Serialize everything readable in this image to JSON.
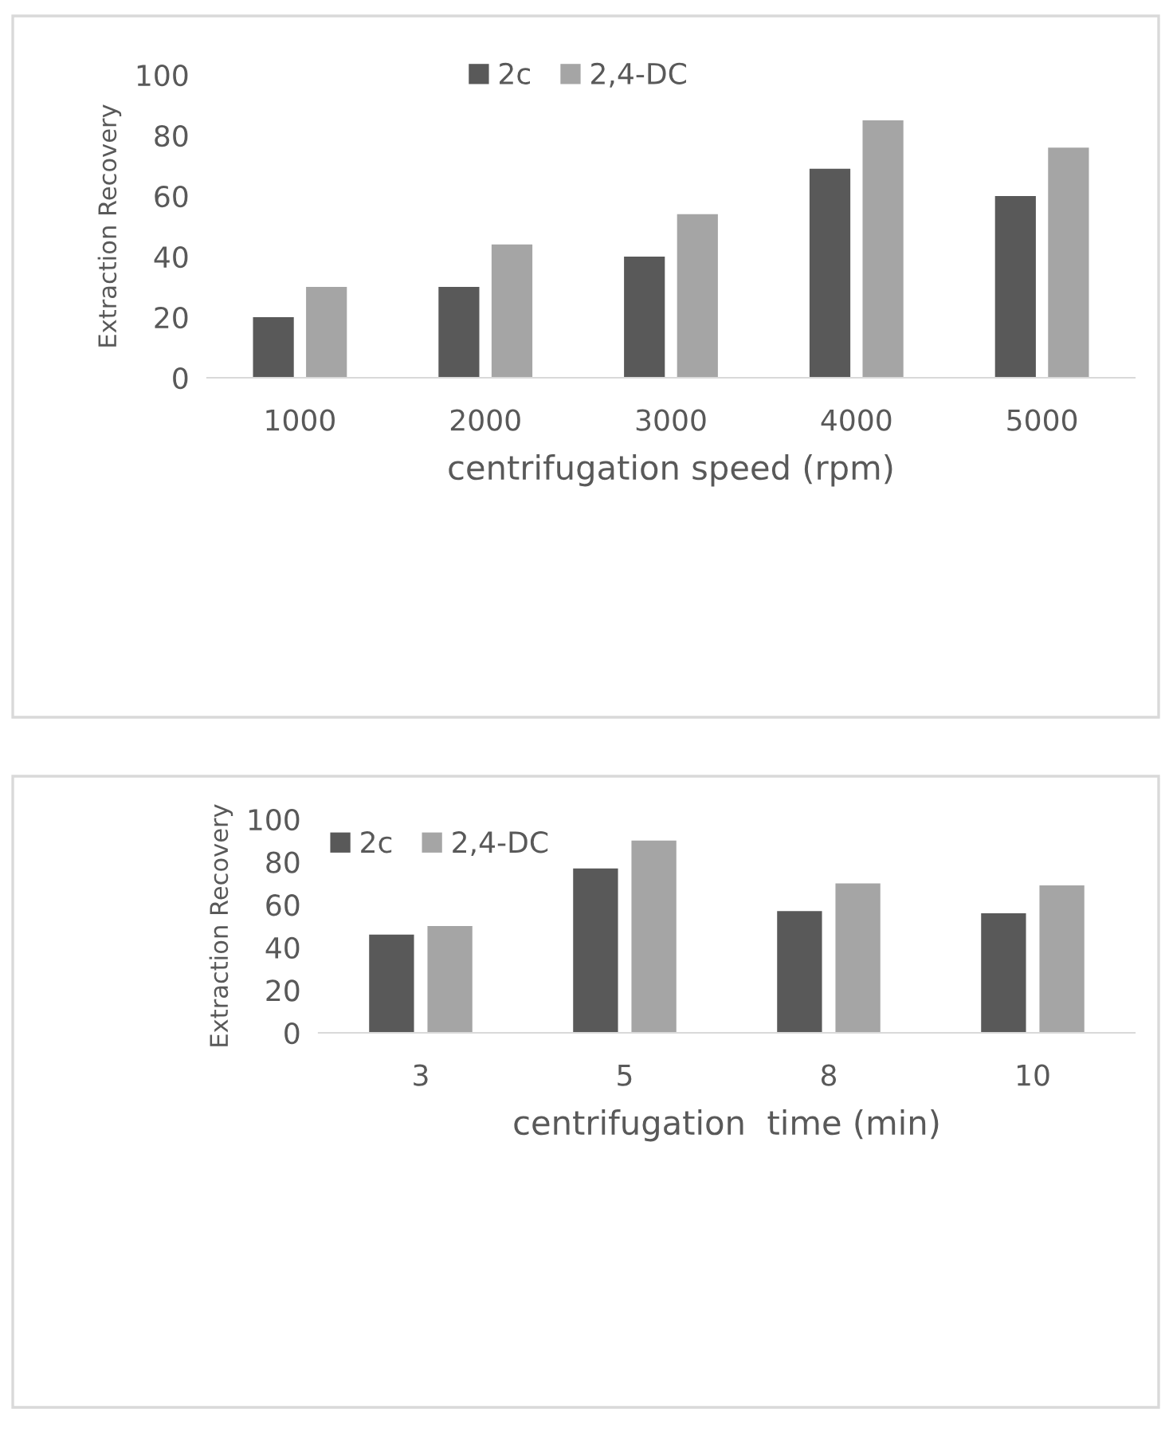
{
  "chart_data": [
    {
      "type": "bar",
      "categories": [
        "1000",
        "2000",
        "3000",
        "4000",
        "5000"
      ],
      "xlabel": "centrifugation speed (rpm)",
      "ylabel": "Extraction Recovery",
      "ylim": [
        0,
        100
      ],
      "yticks": [
        0,
        20,
        40,
        60,
        80,
        100
      ],
      "grid": false,
      "legend": "top",
      "series": [
        {
          "name": "2c",
          "color": "#595959",
          "values": [
            20,
            30,
            40,
            69,
            60
          ]
        },
        {
          "name": "2,4-DC",
          "color": "#a5a5a5",
          "values": [
            30,
            44,
            54,
            85,
            76
          ]
        }
      ]
    },
    {
      "type": "bar",
      "categories": [
        "3",
        "5",
        "8",
        "10"
      ],
      "xlabel": "centrifugation  time (min)",
      "ylabel": "Extraction Recovery",
      "ylim": [
        0,
        100
      ],
      "yticks": [
        0,
        20,
        40,
        60,
        80,
        100
      ],
      "grid": false,
      "legend": "top left",
      "series": [
        {
          "name": "2c",
          "color": "#595959",
          "values": [
            46,
            77,
            57,
            56
          ]
        },
        {
          "name": "2,4-DC",
          "color": "#a5a5a5",
          "values": [
            50,
            90,
            70,
            69
          ]
        }
      ]
    }
  ]
}
